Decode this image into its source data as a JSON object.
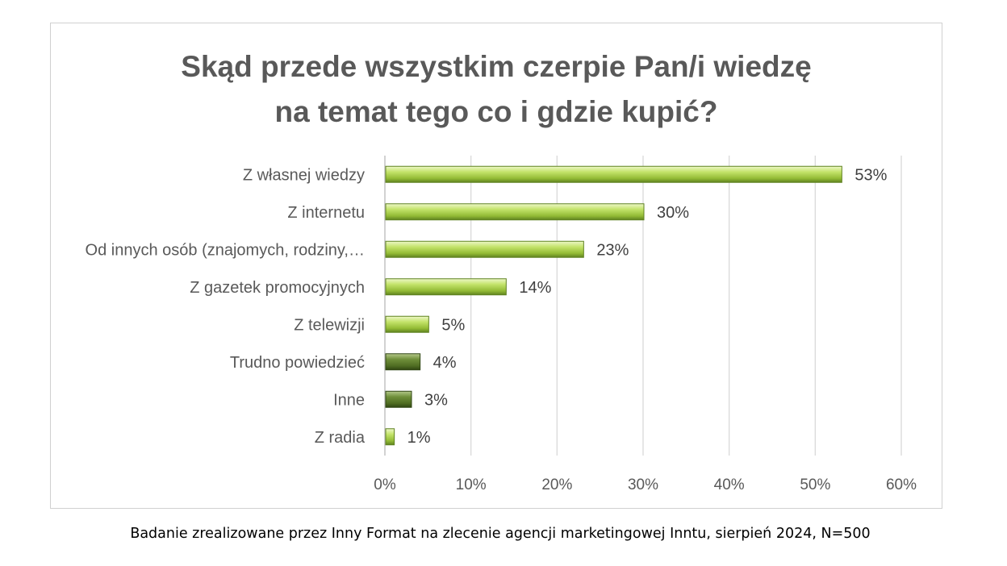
{
  "chart_data": {
    "type": "bar",
    "orientation": "horizontal",
    "title_lines": [
      "Skąd przede wszystkim czerpie Pan/i wiedzę",
      "na temat tego co i gdzie kupić?"
    ],
    "categories": [
      "Z własnej wiedzy",
      "Z internetu",
      "Od innych osób (znajomych, rodziny,…",
      "Z gazetek promocyjnych",
      "Z telewizji",
      "Trudno powiedzieć",
      "Inne",
      "Z radia"
    ],
    "values": [
      53,
      30,
      23,
      14,
      5,
      4,
      3,
      1
    ],
    "value_labels": [
      "53%",
      "30%",
      "23%",
      "14%",
      "5%",
      "4%",
      "3%",
      "1%"
    ],
    "bar_colors": [
      "#9bc53d",
      "#9bc53d",
      "#9bc53d",
      "#9bc53d",
      "#9bc53d",
      "#5e7f2a",
      "#5e7f2a",
      "#9bc53d"
    ],
    "xlim": [
      0,
      60
    ],
    "x_ticks": [
      0,
      10,
      20,
      30,
      40,
      50,
      60
    ],
    "x_tick_labels": [
      "0%",
      "10%",
      "20%",
      "30%",
      "40%",
      "50%",
      "60%"
    ],
    "grid": true,
    "legend": "none"
  },
  "footer": {
    "note": "Badanie zrealizowane przez Inny Format na zlecenie agencji marketingowej Inntu, sierpień 2024, N=500"
  }
}
